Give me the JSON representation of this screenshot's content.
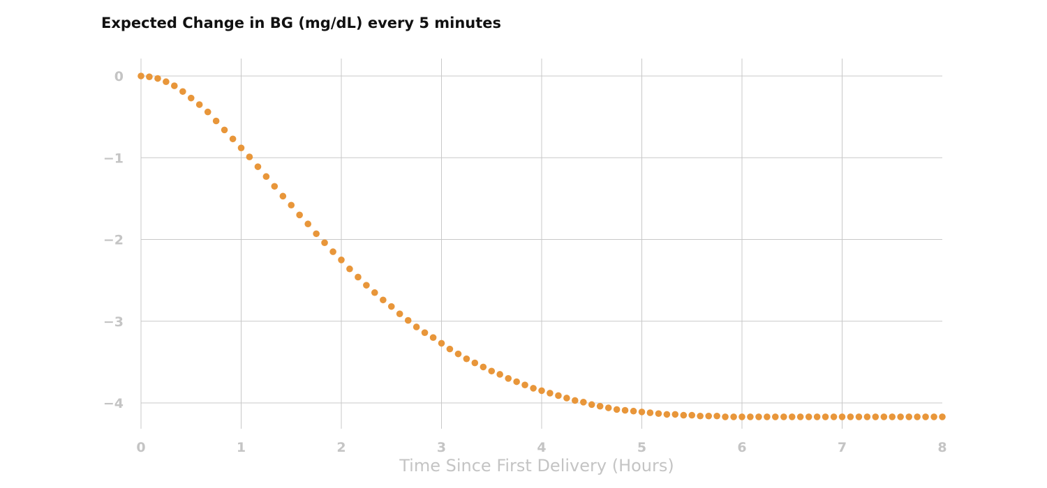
{
  "chart_data": {
    "type": "scatter",
    "title": "Expected Change in BG (mg/dL) every 5 minutes",
    "xlabel": "Time Since First Delivery (Hours)",
    "ylabel": "",
    "xlim": [
      0,
      8
    ],
    "ylim": [
      -4.2,
      0
    ],
    "x_ticks": [
      "0",
      "1",
      "2",
      "3",
      "4",
      "5",
      "6",
      "7",
      "8"
    ],
    "y_ticks": [
      "0",
      "−1",
      "−2",
      "−3",
      "−4"
    ],
    "grid": true,
    "marker_color": "#E8963A",
    "series": [
      {
        "x": [
          0,
          0.083,
          0.167,
          0.25,
          0.333,
          0.417,
          0.5,
          0.583,
          0.667,
          0.75,
          0.833,
          0.917,
          1.0,
          1.083,
          1.167,
          1.25,
          1.333,
          1.417,
          1.5,
          1.583,
          1.667,
          1.75,
          1.833,
          1.917,
          2.0,
          2.083,
          2.167,
          2.25,
          2.333,
          2.417,
          2.5,
          2.583,
          2.667,
          2.75,
          2.833,
          2.917,
          3.0,
          3.083,
          3.167,
          3.25,
          3.333,
          3.417,
          3.5,
          3.583,
          3.667,
          3.75,
          3.833,
          3.917,
          4.0,
          4.083,
          4.167,
          4.25,
          4.333,
          4.417,
          4.5,
          4.583,
          4.667,
          4.75,
          4.833,
          4.917,
          5.0,
          5.083,
          5.167,
          5.25,
          5.333,
          5.417,
          5.5,
          5.583,
          5.667,
          5.75,
          5.833,
          5.917,
          6.0,
          6.083,
          6.167,
          6.25,
          6.333,
          6.417,
          6.5,
          6.583,
          6.667,
          6.75,
          6.833,
          6.917,
          7.0,
          7.083,
          7.167,
          7.25,
          7.333,
          7.417,
          7.5,
          7.583,
          7.667,
          7.75,
          7.833,
          7.917,
          8.0
        ],
        "y": [
          0,
          -0.01,
          -0.03,
          -0.07,
          -0.12,
          -0.19,
          -0.27,
          -0.35,
          -0.44,
          -0.55,
          -0.66,
          -0.77,
          -0.88,
          -0.99,
          -1.11,
          -1.23,
          -1.35,
          -1.47,
          -1.58,
          -1.7,
          -1.81,
          -1.93,
          -2.04,
          -2.15,
          -2.25,
          -2.36,
          -2.46,
          -2.56,
          -2.65,
          -2.74,
          -2.82,
          -2.91,
          -2.99,
          -3.07,
          -3.14,
          -3.2,
          -3.27,
          -3.34,
          -3.4,
          -3.46,
          -3.51,
          -3.56,
          -3.61,
          -3.65,
          -3.7,
          -3.74,
          -3.78,
          -3.82,
          -3.85,
          -3.88,
          -3.91,
          -3.94,
          -3.97,
          -3.99,
          -4.02,
          -4.04,
          -4.06,
          -4.08,
          -4.09,
          -4.1,
          -4.11,
          -4.12,
          -4.13,
          -4.14,
          -4.14,
          -4.15,
          -4.15,
          -4.16,
          -4.16,
          -4.16,
          -4.17,
          -4.17,
          -4.17,
          -4.17,
          -4.17,
          -4.17,
          -4.17,
          -4.17,
          -4.17,
          -4.17,
          -4.17,
          -4.17,
          -4.17,
          -4.17,
          -4.17,
          -4.17,
          -4.17,
          -4.17,
          -4.17,
          -4.17,
          -4.17,
          -4.17,
          -4.17,
          -4.17,
          -4.17,
          -4.17,
          -4.17
        ]
      }
    ]
  }
}
